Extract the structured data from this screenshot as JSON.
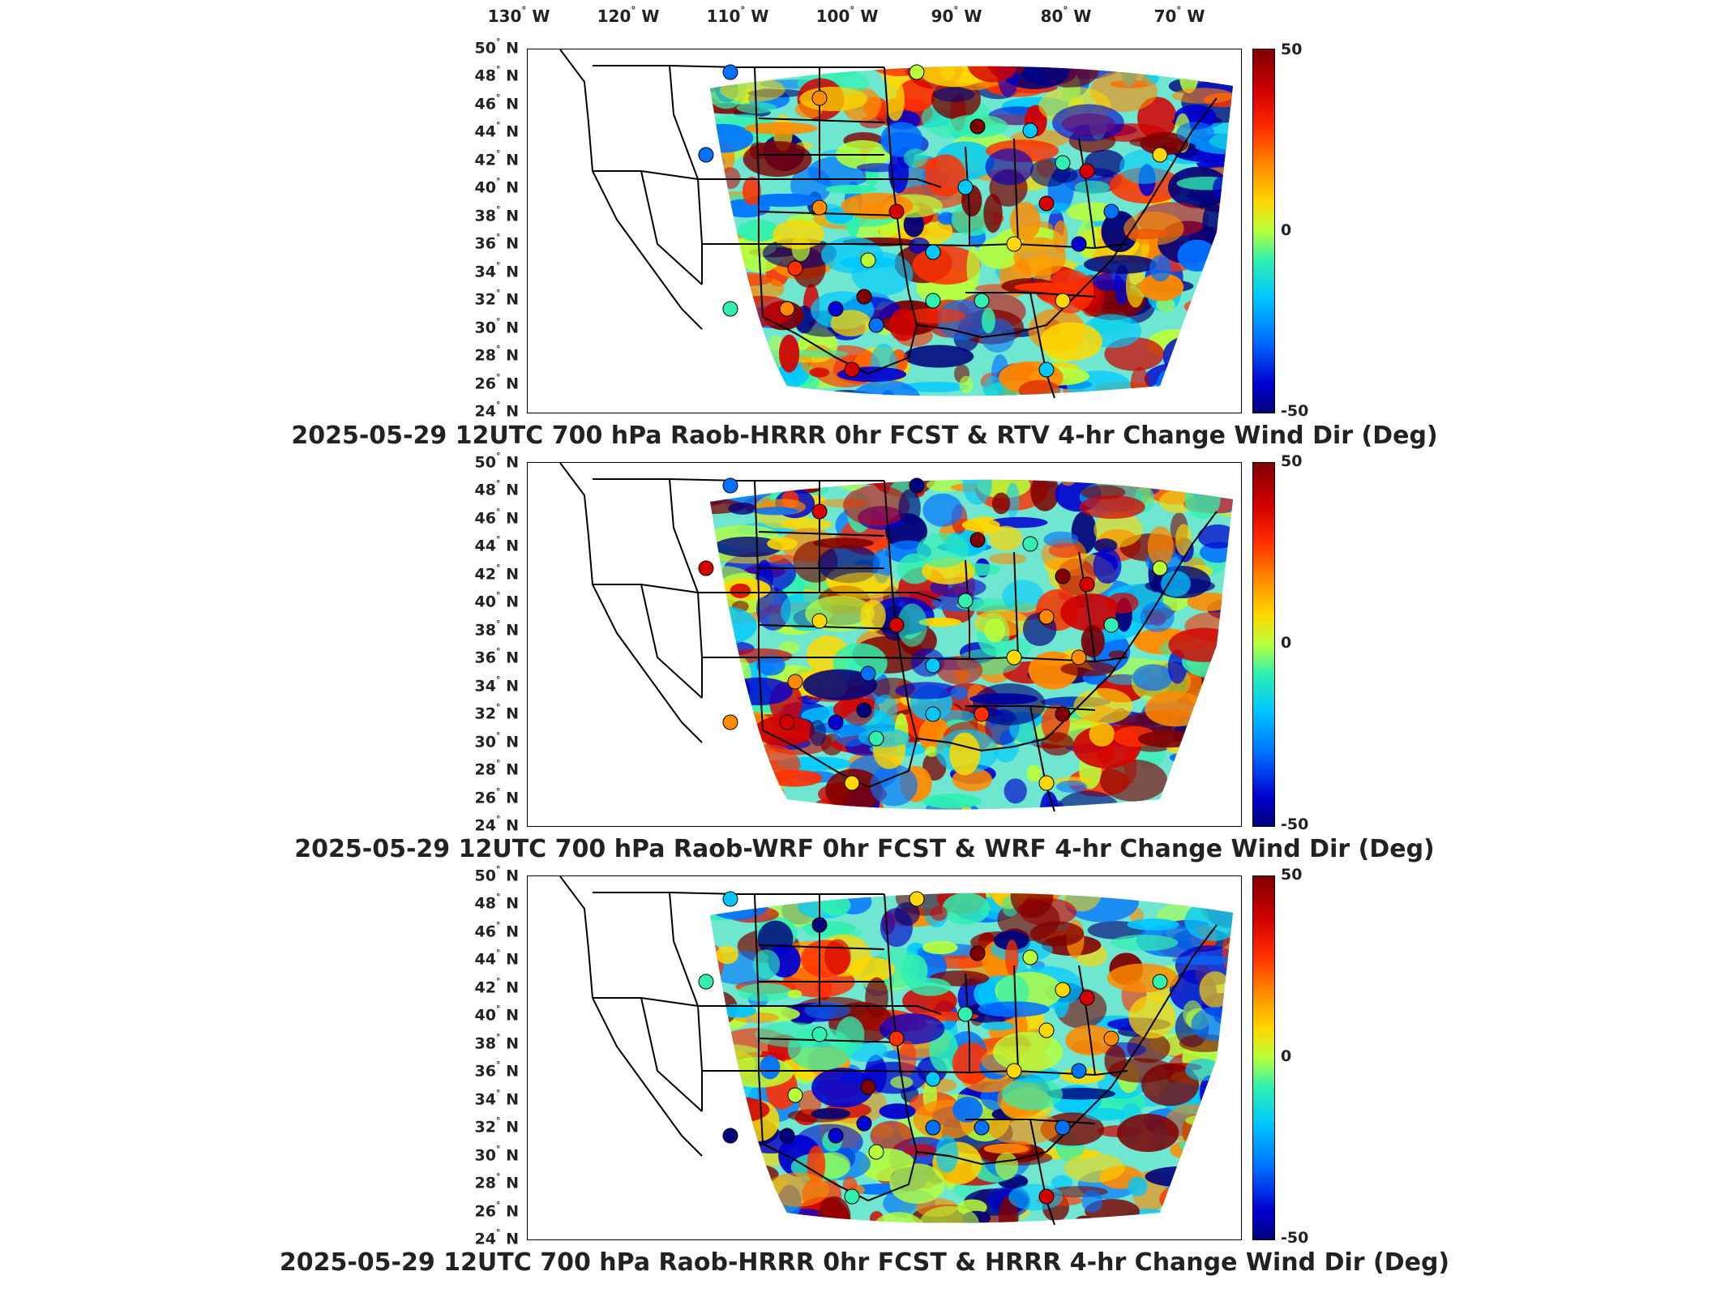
{
  "lon_labels": [
    "130",
    "120",
    "110",
    "100",
    "90",
    "80",
    "70"
  ],
  "lon_suffix": "W",
  "lat_labels": [
    "50",
    "48",
    "46",
    "44",
    "42",
    "40",
    "38",
    "36",
    "34",
    "32",
    "30",
    "28",
    "26",
    "24"
  ],
  "lat_suffix": "N",
  "colorbar": {
    "max": "50",
    "mid": "0",
    "min": "-50",
    "colors": [
      "#7f0000",
      "#d40000",
      "#ff3000",
      "#ff8a00",
      "#ffd800",
      "#b8ff3a",
      "#30f0b0",
      "#00c8ff",
      "#0070ff",
      "#0000d0",
      "#00007a"
    ]
  },
  "panels": [
    {
      "caption": "2025-05-29 12UTC 700 hPa Raob-HRRR 0hr FCST & RTV 4-hr Change Wind Dir (Deg)"
    },
    {
      "caption": "2025-05-29 12UTC 700 hPa Raob-WRF 0hr FCST & WRF 4-hr Change Wind Dir (Deg)"
    },
    {
      "caption": "2025-05-29 12UTC 700 hPa Raob-HRRR 0hr FCST & HRRR 4-hr Change Wind Dir (Deg)"
    }
  ]
}
